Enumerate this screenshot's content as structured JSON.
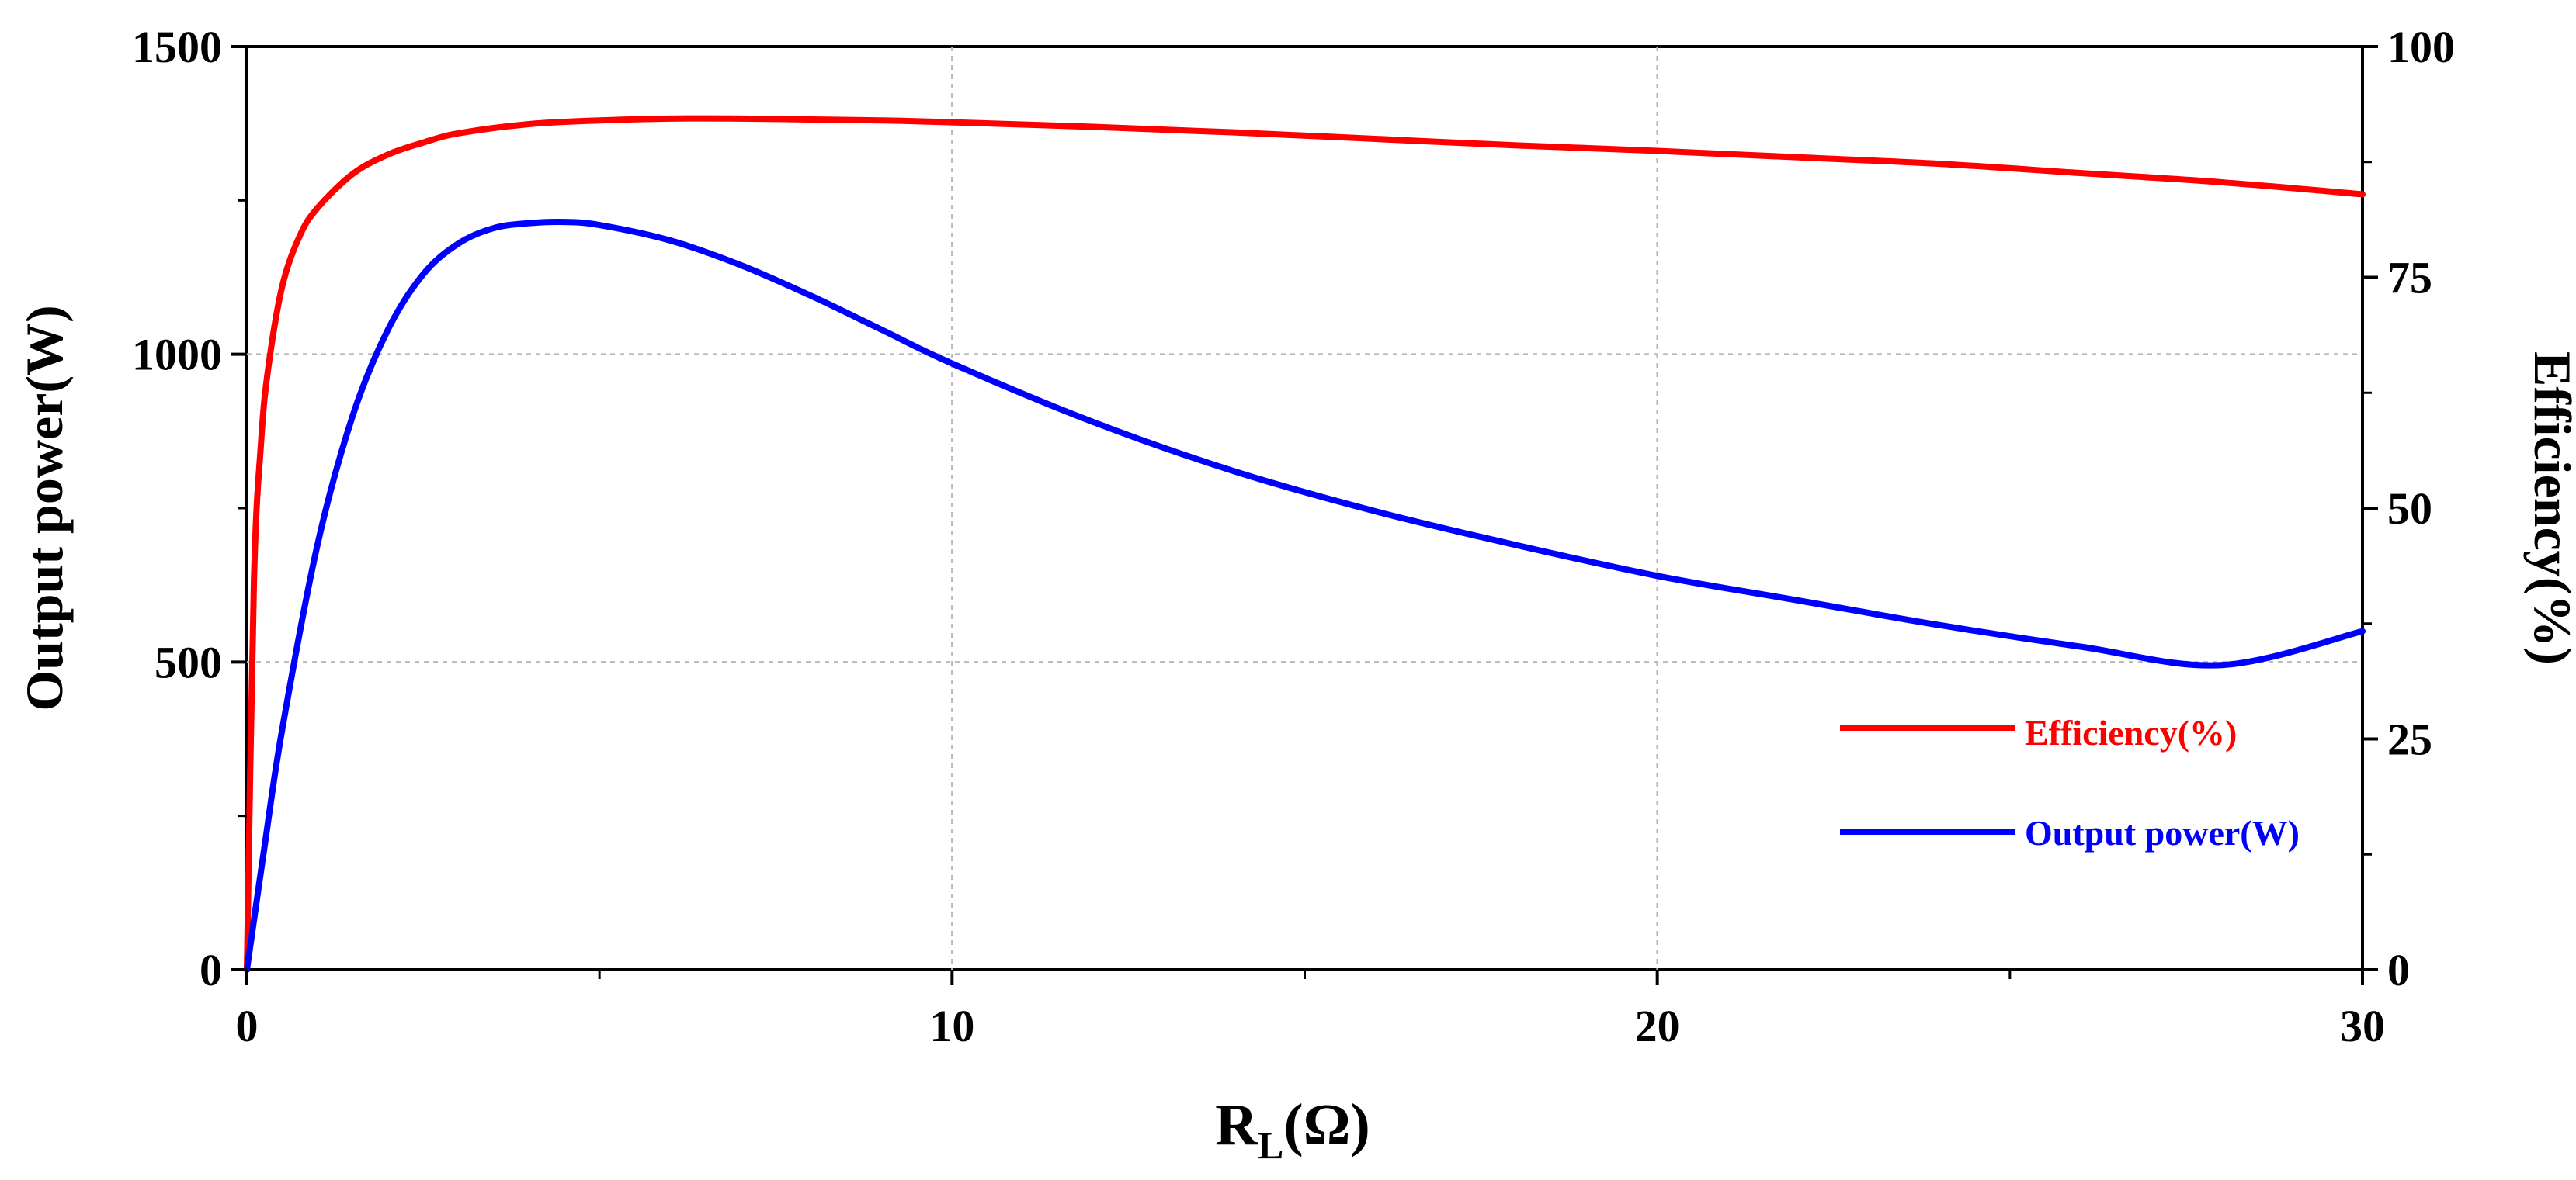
{
  "chart_data": {
    "type": "line",
    "title": "",
    "xlabel": {
      "main": "R",
      "subscript": "L",
      "suffix": "(Ω)"
    },
    "ylabel_left": "Output power(W)",
    "ylabel_right": "Efficiency(%)",
    "xlim": [
      0,
      30
    ],
    "ylim_left": [
      0,
      1500
    ],
    "ylim_right": [
      0,
      100
    ],
    "x_ticks": [
      0,
      10,
      20,
      30
    ],
    "y_left_ticks": [
      0,
      500,
      1000,
      1500
    ],
    "y_right_ticks": [
      0,
      25,
      50,
      75,
      100
    ],
    "grid": true,
    "legend_position": "lower-right",
    "series": [
      {
        "name": "Efficiency(%)",
        "axis": "right",
        "color": "#ff0000",
        "x": [
          0,
          0.1,
          0.2,
          0.3,
          0.5,
          0.75,
          1,
          1.5,
          2,
          2.5,
          3,
          4,
          5,
          6,
          7,
          8,
          9,
          10,
          12,
          14,
          16,
          18,
          20,
          22,
          24,
          26,
          28,
          30
        ],
        "y": [
          0,
          42,
          57,
          65,
          74,
          79.5,
          82.5,
          86.2,
          88.3,
          89.6,
          90.6,
          91.6,
          92,
          92.2,
          92.2,
          92.1,
          92,
          91.8,
          91.3,
          90.7,
          90,
          89.3,
          88.7,
          88,
          87.3,
          86.3,
          85.3,
          84
        ]
      },
      {
        "name": "Output power(W)",
        "axis": "left",
        "color": "#0000ff",
        "x": [
          0,
          0.25,
          0.5,
          1,
          1.5,
          2,
          2.5,
          3,
          3.5,
          4,
          4.5,
          5,
          6,
          7,
          8,
          9,
          10,
          12,
          14,
          16,
          18,
          20,
          22,
          24,
          26,
          28,
          30
        ],
        "y": [
          0,
          200,
          390,
          690,
          900,
          1040,
          1130,
          1180,
          1205,
          1213,
          1215,
          1210,
          1185,
          1145,
          1095,
          1040,
          985,
          890,
          810,
          745,
          690,
          640,
          600,
          560,
          525,
          495,
          550
        ]
      }
    ]
  }
}
